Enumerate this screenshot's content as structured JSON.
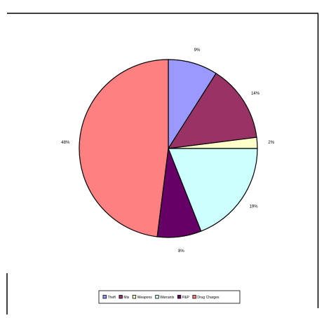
{
  "chart_data": {
    "type": "pie",
    "title": "",
    "start_angle_deg": 0,
    "direction": "clockwise",
    "legend_position": "bottom",
    "slices": [
      {
        "name": "Theft",
        "legend_label": "Theft",
        "value": 9,
        "label": "9%",
        "color": "#9999ff"
      },
      {
        "name": "Mischief",
        "legend_label": "Mis",
        "value": 14,
        "label": "14%",
        "color": "#993366"
      },
      {
        "name": "Weapons",
        "legend_label": "Weapons",
        "value": 2,
        "label": "2%",
        "color": "#ffffcc"
      },
      {
        "name": "Warrants",
        "legend_label": "Warrants",
        "value": 19,
        "label": "19%",
        "color": "#ccffff"
      },
      {
        "name": "P&P",
        "legend_label": "P&P",
        "value": 8,
        "label": "8%",
        "color": "#660066"
      },
      {
        "name": "Drug Charges",
        "legend_label": "Drug Charges",
        "value": 48,
        "label": "48%",
        "color": "#ff8080"
      }
    ]
  }
}
